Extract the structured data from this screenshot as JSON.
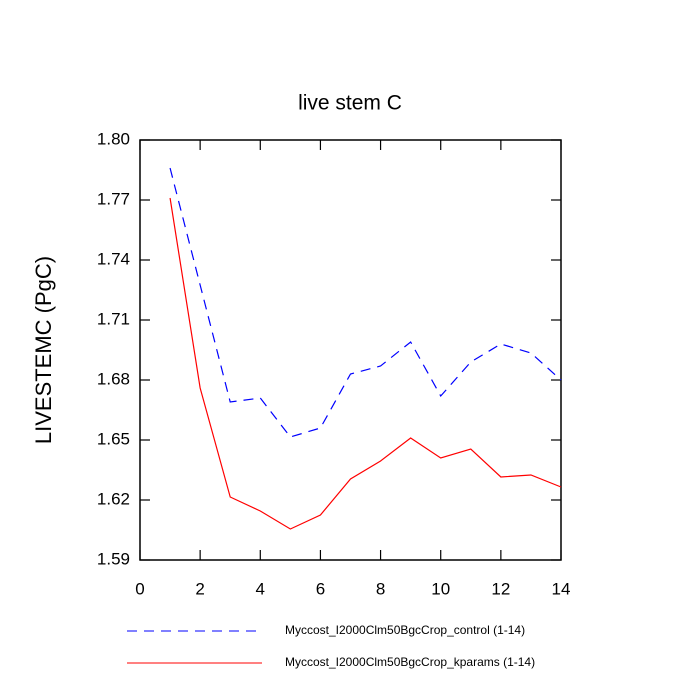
{
  "chart_data": {
    "type": "line",
    "title": "live stem C",
    "y_label": "LIVESTEMC  (PgC)",
    "x": [
      1,
      2,
      3,
      4,
      5,
      6,
      7,
      8,
      9,
      10,
      11,
      12,
      13,
      14
    ],
    "series": [
      {
        "name": "Myccost_I2000Clm50BgcCrop_control (1-14)",
        "color": "#0000ff",
        "dash": "10 7",
        "values": [
          1.786,
          1.7275,
          1.669,
          1.671,
          1.6515,
          1.656,
          1.683,
          1.687,
          1.699,
          1.672,
          1.689,
          1.698,
          1.6935,
          1.68
        ]
      },
      {
        "name": "Myccost_I2000Clm50BgcCrop_kparams (1-14)",
        "color": "#ff0000",
        "values": [
          1.771,
          1.676,
          1.6215,
          1.6145,
          1.6055,
          1.6125,
          1.6305,
          1.6395,
          1.651,
          1.641,
          1.6455,
          1.6315,
          1.6325,
          1.6265
        ]
      }
    ],
    "xlim": [
      0,
      14
    ],
    "xticks": [
      0,
      2,
      4,
      6,
      8,
      10,
      12,
      14
    ],
    "ylim": [
      1.59,
      1.8
    ],
    "yticks": [
      1.59,
      1.62,
      1.65,
      1.68,
      1.71,
      1.74,
      1.77,
      {
        "value": 1.8,
        "label": "1.80"
      }
    ],
    "grid": false
  }
}
